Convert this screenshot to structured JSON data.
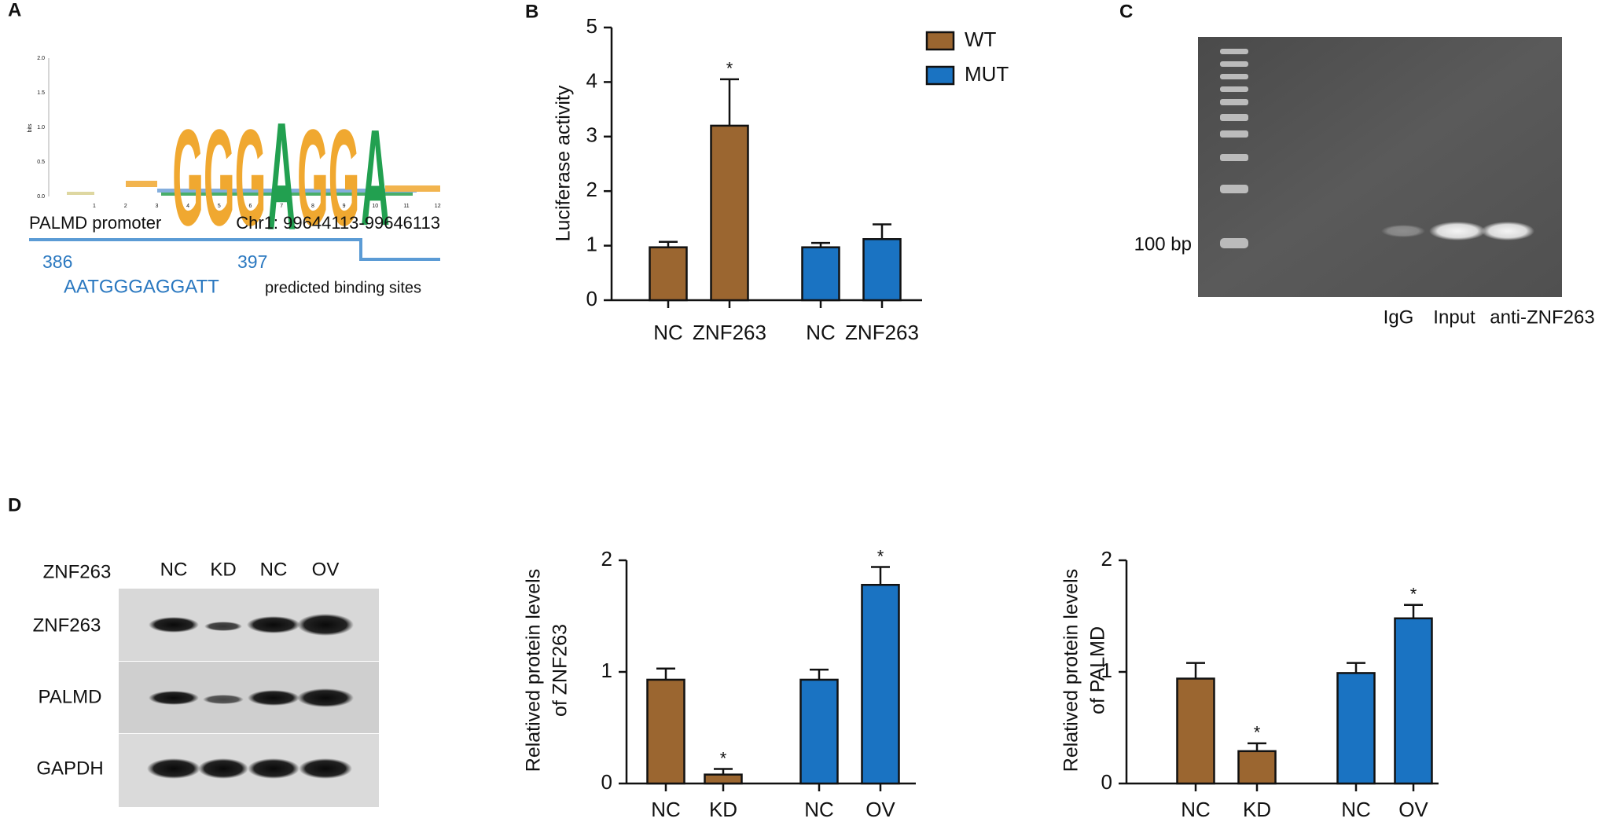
{
  "panel_labels": [
    "A",
    "B",
    "C",
    "D"
  ],
  "logo": {
    "ylabel": "bits",
    "yticks": [
      "2.0",
      "1.5",
      "1.0",
      "0.5",
      "0.0"
    ],
    "xticks": [
      1,
      2,
      3,
      4,
      5,
      6,
      7,
      8,
      9,
      10,
      11,
      12
    ],
    "letters": [
      "G",
      "G",
      "G",
      "A",
      "G",
      "G",
      "A"
    ]
  },
  "promoter": {
    "name": "PALMD promoter",
    "location": "Chr1: 99644113-99646113",
    "start": "386",
    "end": "397",
    "sequence": "AATGGGAGGATT",
    "caption": "predicted binding sites"
  },
  "gel": {
    "marker": "100 bp",
    "lanes": [
      "IgG",
      "Input",
      "anti-ZNF263"
    ]
  },
  "blot": {
    "header": "ZNF263",
    "lanes": [
      "NC",
      "KD",
      "NC",
      "OV"
    ],
    "rows": [
      "ZNF263",
      "PALMD",
      "GAPDH"
    ]
  },
  "chart_data": [
    {
      "type": "bar",
      "ylabel": [
        "Luciferase activity"
      ],
      "categories": [
        "NC",
        "ZNF263",
        "NC",
        "ZNF263"
      ],
      "series": [
        {
          "name": "WT",
          "color": "#9b6630",
          "values": [
            0.97,
            3.2,
            null,
            null
          ],
          "errors": [
            0.1,
            0.85,
            null,
            null
          ],
          "significance": [
            null,
            "*",
            null,
            null
          ]
        },
        {
          "name": "MUT",
          "color": "#1a73c2",
          "values": [
            null,
            null,
            0.97,
            1.12
          ],
          "errors": [
            null,
            null,
            0.08,
            0.27
          ],
          "significance": [
            null,
            null,
            null,
            null
          ]
        }
      ],
      "ylim": [
        0,
        5
      ],
      "yticks": [
        0,
        1,
        2,
        3,
        4,
        5
      ],
      "legend": "top-right"
    },
    {
      "type": "bar",
      "ylabel": [
        "Relatived protein levels",
        "of ZNF263"
      ],
      "categories": [
        "NC",
        "KD",
        "NC",
        "OV"
      ],
      "series": [
        {
          "color": "#9b6630",
          "values": [
            0.93,
            0.08,
            null,
            null
          ],
          "errors": [
            0.1,
            0.05,
            null,
            null
          ],
          "significance": [
            null,
            "*",
            null,
            null
          ]
        },
        {
          "color": "#1a73c2",
          "values": [
            null,
            null,
            0.93,
            1.78
          ],
          "errors": [
            null,
            null,
            0.09,
            0.16
          ],
          "significance": [
            null,
            null,
            null,
            "*"
          ]
        }
      ],
      "ylim": [
        0,
        2
      ],
      "yticks": [
        0,
        1,
        2
      ]
    },
    {
      "type": "bar",
      "ylabel": [
        "Relatived protein levels",
        "of PALMD"
      ],
      "categories": [
        "NC",
        "KD",
        "NC",
        "OV"
      ],
      "series": [
        {
          "color": "#9b6630",
          "values": [
            0.94,
            0.29,
            null,
            null
          ],
          "errors": [
            0.14,
            0.07,
            null,
            null
          ],
          "significance": [
            null,
            "*",
            null,
            null
          ]
        },
        {
          "color": "#1a73c2",
          "values": [
            null,
            null,
            0.99,
            1.48
          ],
          "errors": [
            null,
            null,
            0.09,
            0.12
          ],
          "significance": [
            null,
            null,
            null,
            "*"
          ]
        }
      ],
      "ylim": [
        0,
        2
      ],
      "yticks": [
        0,
        1,
        2
      ]
    }
  ]
}
